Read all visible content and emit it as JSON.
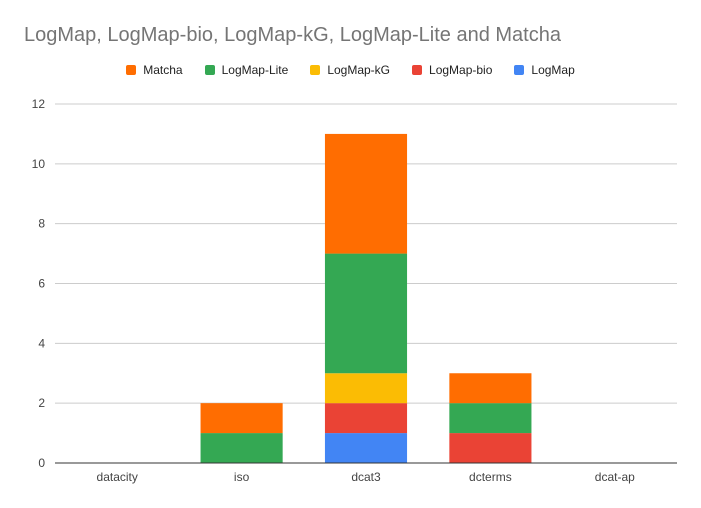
{
  "chart_data": {
    "type": "bar",
    "stacked": true,
    "title": "LogMap, LogMap-bio, LogMap-kG, LogMap-Lite and Matcha",
    "xlabel": "",
    "ylabel": "",
    "categories": [
      "datacity",
      "iso",
      "dcat3",
      "dcterms",
      "dcat-ap"
    ],
    "series": [
      {
        "name": "LogMap",
        "color": "#4285f4",
        "values": [
          0,
          0,
          1,
          0,
          0
        ]
      },
      {
        "name": "LogMap-bio",
        "color": "#ea4335",
        "values": [
          0,
          0,
          1,
          1,
          0
        ]
      },
      {
        "name": "LogMap-kG",
        "color": "#fbbc04",
        "values": [
          0,
          0,
          1,
          0,
          0
        ]
      },
      {
        "name": "LogMap-Lite",
        "color": "#34a853",
        "values": [
          0,
          1,
          4,
          1,
          0
        ]
      },
      {
        "name": "Matcha",
        "color": "#ff6d01",
        "values": [
          0,
          1,
          4,
          1,
          0
        ]
      }
    ],
    "legend_order": [
      "Matcha",
      "LogMap-Lite",
      "LogMap-kG",
      "LogMap-bio",
      "LogMap"
    ],
    "legend_position": "top",
    "ylim": [
      0,
      12
    ],
    "yticks": [
      0,
      2,
      4,
      6,
      8,
      10,
      12
    ],
    "grid": true
  }
}
